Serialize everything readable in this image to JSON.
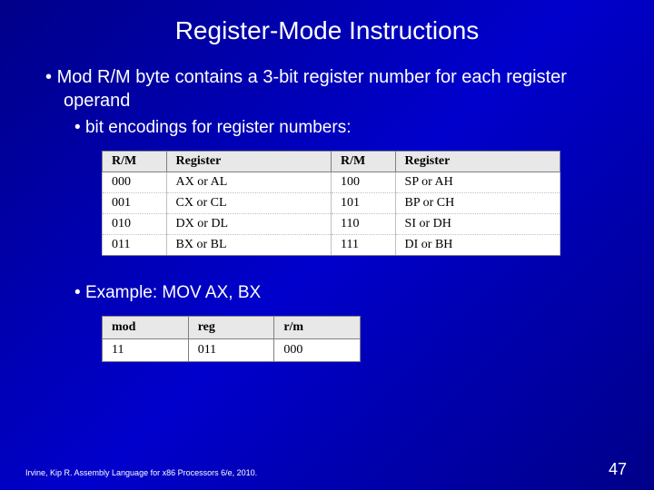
{
  "title": "Register-Mode Instructions",
  "bullets": {
    "main": "Mod R/M byte contains a 3-bit register number for each register operand",
    "sub1": "bit encodings for register numbers:",
    "sub2": "Example: MOV AX, BX"
  },
  "regTable": {
    "headers": {
      "rm": "R/M",
      "reg": "Register"
    },
    "rows": [
      {
        "rm1": "000",
        "reg1": "AX or AL",
        "rm2": "100",
        "reg2": "SP or AH"
      },
      {
        "rm1": "001",
        "reg1": "CX or CL",
        "rm2": "101",
        "reg2": "BP or CH"
      },
      {
        "rm1": "010",
        "reg1": "DX or DL",
        "rm2": "110",
        "reg2": "SI or DH"
      },
      {
        "rm1": "011",
        "reg1": "BX or BL",
        "rm2": "111",
        "reg2": "DI or BH"
      }
    ]
  },
  "exampleTable": {
    "headers": {
      "mod": "mod",
      "reg": "reg",
      "rm": "r/m"
    },
    "row": {
      "mod": "11",
      "reg": "011",
      "rm": "000"
    }
  },
  "footer": {
    "citation": "Irvine, Kip R. Assembly Language for x86 Processors 6/e, 2010.",
    "page": "47"
  }
}
